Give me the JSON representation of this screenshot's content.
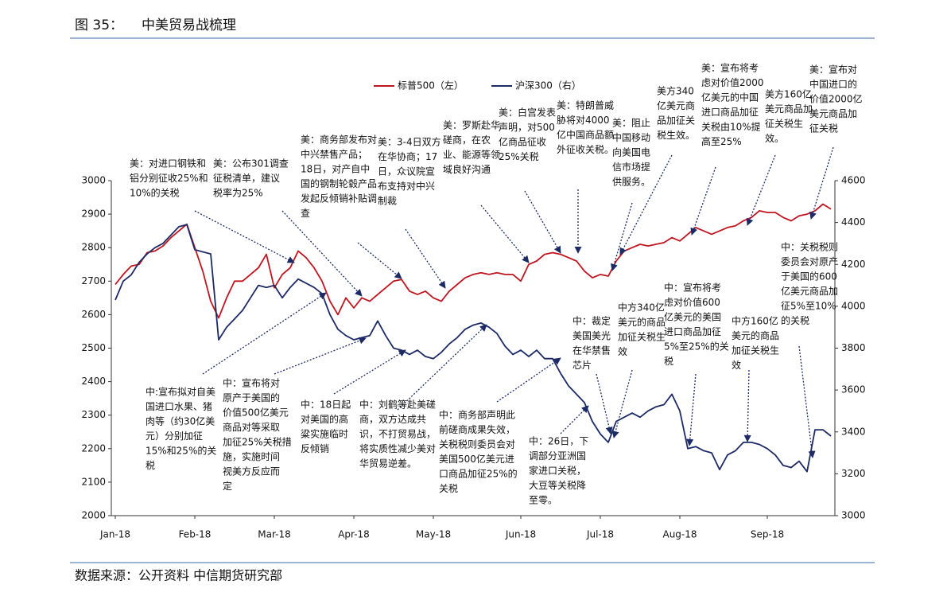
{
  "chart_data": {
    "type": "line",
    "figure_label": "图 35：",
    "title": "中美贸易战梳理",
    "source": "数据来源：公开资料 中信期货研究部",
    "legend": "top",
    "categories": [
      "Jan-18",
      null,
      null,
      null,
      null,
      null,
      null,
      null,
      null,
      null,
      "Feb-18",
      null,
      null,
      null,
      null,
      null,
      null,
      null,
      null,
      null,
      "Mar-18",
      null,
      null,
      null,
      null,
      null,
      null,
      null,
      null,
      null,
      "Apr-18",
      null,
      null,
      null,
      null,
      null,
      null,
      null,
      null,
      null,
      "May-18",
      null,
      null,
      null,
      null,
      null,
      null,
      null,
      null,
      null,
      null,
      "Jun-18",
      null,
      null,
      null,
      null,
      null,
      null,
      null,
      null,
      null,
      "Jul-18",
      null,
      null,
      null,
      null,
      null,
      null,
      null,
      null,
      null,
      "Aug-18",
      null,
      null,
      null,
      null,
      null,
      null,
      null,
      null,
      null,
      null,
      "Sep-18",
      null,
      null,
      null,
      null,
      null,
      null,
      null,
      null
    ],
    "ylim": [
      2000,
      3000
    ],
    "yticks": [
      2000,
      2100,
      2200,
      2300,
      2400,
      2500,
      2600,
      2700,
      2800,
      2900,
      3000
    ],
    "y2lim": [
      3000,
      4600
    ],
    "y2ticks": [
      3000,
      3200,
      3400,
      3600,
      3800,
      4000,
      4200,
      4400,
      4600
    ],
    "series": [
      {
        "name": "标普500（左）",
        "color": "#c0151f",
        "values": [
          2690,
          2720,
          2745,
          2750,
          2785,
          2790,
          2805,
          2830,
          2850,
          2870,
          2800,
          2730,
          2640,
          2590,
          2650,
          2700,
          2700,
          2720,
          2740,
          2780,
          2680,
          2720,
          2740,
          2790,
          2770,
          2740,
          2700,
          2640,
          2600,
          2650,
          2620,
          2650,
          2640,
          2660,
          2680,
          2700,
          2705,
          2670,
          2660,
          2670,
          2650,
          2640,
          2670,
          2690,
          2710,
          2720,
          2725,
          2720,
          2725,
          2720,
          2720,
          2700,
          2750,
          2760,
          2780,
          2785,
          2780,
          2770,
          2760,
          2730,
          2710,
          2720,
          2715,
          2760,
          2790,
          2800,
          2810,
          2805,
          2810,
          2815,
          2830,
          2820,
          2840,
          2860,
          2850,
          2840,
          2850,
          2860,
          2865,
          2880,
          2890,
          2910,
          2905,
          2905,
          2890,
          2880,
          2895,
          2900,
          2910,
          2930,
          2915
        ]
      },
      {
        "name": "沪深300（右）",
        "color": "#1c2a66",
        "axis": "y2",
        "values": [
          4030,
          4120,
          4150,
          4210,
          4250,
          4280,
          4300,
          4340,
          4380,
          4390,
          4270,
          4260,
          4250,
          3840,
          3900,
          3940,
          3980,
          4040,
          4100,
          4090,
          4100,
          4040,
          4090,
          4130,
          4110,
          4090,
          4060,
          3960,
          3890,
          3860,
          3840,
          3850,
          3860,
          3930,
          3860,
          3800,
          3790,
          3770,
          3790,
          3760,
          3750,
          3780,
          3820,
          3850,
          3890,
          3910,
          3920,
          3900,
          3870,
          3810,
          3770,
          3790,
          3760,
          3790,
          3750,
          3750,
          3680,
          3620,
          3580,
          3540,
          3450,
          3390,
          3350,
          3450,
          3470,
          3490,
          3470,
          3500,
          3520,
          3530,
          3580,
          3500,
          3320,
          3330,
          3310,
          3300,
          3220,
          3290,
          3310,
          3350,
          3350,
          3340,
          3320,
          3290,
          3240,
          3230,
          3260,
          3210,
          3410,
          3410,
          3380
        ]
      }
    ],
    "annotations": [
      {
        "lines": [
          "美：对进口钢铁和",
          "铝分别征收25%和",
          "10%的关税"
        ]
      },
      {
        "lines": [
          "美：公布301调查",
          "征税清单，建议",
          "税率为25%"
        ]
      },
      {
        "lines": [
          "美：商务部发布对",
          "中兴禁售产品；",
          "18日，对产自中",
          "国的钢制轮毂产品",
          "发起反倾销补贴调",
          "查"
        ]
      },
      {
        "lines": [
          "美：3-4日双方",
          "在华协商；17",
          "日，众议院宣",
          "布支持对中兴",
          "制裁"
        ]
      },
      {
        "lines": [
          "美：罗斯赴华",
          "磋商，在农",
          "业、能源等领",
          "域良好沟通"
        ]
      },
      {
        "lines": [
          "美：白宫发表",
          "声明，对500",
          "亿商品征收",
          "25%关税"
        ]
      },
      {
        "lines": [
          "美：特朗普威",
          "胁将对4000",
          "亿中国商品额",
          "外征收关税。"
        ]
      },
      {
        "lines": [
          "美：阻止",
          "中国移动",
          "向美国电",
          "信市场提",
          "供服务。"
        ]
      },
      {
        "lines": [
          "美方340",
          "亿美元商",
          "品加征关",
          "税生效。"
        ]
      },
      {
        "lines": [
          "美：宣布将考",
          "虑对价值2000",
          "亿美元的中国",
          "进口商品加征",
          "关税由10%提",
          "高至25%"
        ]
      },
      {
        "lines": [
          "美方160亿",
          "美元商品加",
          "征关税生",
          "效。"
        ]
      },
      {
        "lines": [
          "美：宣布对",
          "中国进口的",
          "价值2000亿",
          "美元商品加",
          "征关税"
        ]
      },
      {
        "lines": [
          "中:宣布拟对自美",
          "国进口水果、猪",
          "肉等（约30亿美",
          "元）分别加征",
          "15%和25%的关",
          "税"
        ]
      },
      {
        "lines": [
          "中：宣布将对",
          "原产于美国的",
          "价值500亿美元",
          "商品对等采取",
          "加征25%关税措",
          "施，实施时间",
          "视美方反应而",
          "定"
        ]
      },
      {
        "lines": [
          "中：18日起",
          "对美国的高",
          "粱实施临时",
          "反倾销"
        ]
      },
      {
        "lines": [
          "中：刘鹤等赴美磋",
          "商，双方达成共",
          "识，不打贸易战，",
          "将实质性减少美对",
          "华贸易逆差。"
        ]
      },
      {
        "lines": [
          "中：商务部声明此",
          "前磋商成果失效，",
          "关税税则委员会对",
          "美国500亿美元进",
          "口商品加征25%的",
          "关税"
        ]
      },
      {
        "lines": [
          "中：26日，下",
          "调部分亚洲国",
          "家进口关税，",
          "大豆等关税降",
          "至零。"
        ]
      },
      {
        "lines": [
          "中：裁定",
          "美国美光",
          "在华禁售",
          "芯片"
        ]
      },
      {
        "lines": [
          "中方340亿",
          "美元的商品",
          "加征关税生",
          "效"
        ]
      },
      {
        "lines": [
          "中：宣布将考",
          "虑对价值600",
          "亿美元的美国",
          "进口商品加征",
          "5%至25%的关",
          "税"
        ]
      },
      {
        "lines": [
          "中方160亿",
          "美元的商品",
          "加征关税生",
          "效"
        ]
      },
      {
        "lines": [
          "中：关税税则",
          "委员会对原产",
          "于美国的600",
          "亿美元商品加",
          "征5%至10%",
          "的关税"
        ]
      }
    ]
  }
}
